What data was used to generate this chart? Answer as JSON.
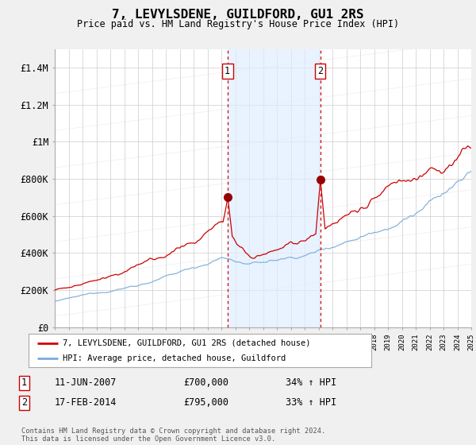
{
  "title": "7, LEVYLSDENE, GUILDFORD, GU1 2RS",
  "subtitle": "Price paid vs. HM Land Registry's House Price Index (HPI)",
  "x_start_year": 1995,
  "x_end_year": 2025,
  "ylim": [
    0,
    1500000
  ],
  "yticks": [
    0,
    200000,
    400000,
    600000,
    800000,
    1000000,
    1200000,
    1400000
  ],
  "ytick_labels": [
    "£0",
    "£200K",
    "£400K",
    "£600K",
    "£800K",
    "£1M",
    "£1.2M",
    "£1.4M"
  ],
  "sale1_date": 2007.44,
  "sale1_price": 700000,
  "sale1_label": "1",
  "sale1_info": "11-JUN-2007",
  "sale1_price_str": "£700,000",
  "sale1_pct": "34% ↑ HPI",
  "sale2_date": 2014.12,
  "sale2_price": 795000,
  "sale2_label": "2",
  "sale2_info": "17-FEB-2014",
  "sale2_price_str": "£795,000",
  "sale2_pct": "33% ↑ HPI",
  "hpi_line_color": "#7aabdb",
  "price_line_color": "#cc0000",
  "dot_color": "#990000",
  "vline_color": "#cc0000",
  "shade_color": "#ddeeff",
  "legend_line1": "7, LEVYLSDENE, GUILDFORD, GU1 2RS (detached house)",
  "legend_line2": "HPI: Average price, detached house, Guildford",
  "footer": "Contains HM Land Registry data © Crown copyright and database right 2024.\nThis data is licensed under the Open Government Licence v3.0.",
  "bg_color": "#f0f0f0",
  "plot_bg_color": "#ffffff",
  "grid_color": "#cccccc"
}
